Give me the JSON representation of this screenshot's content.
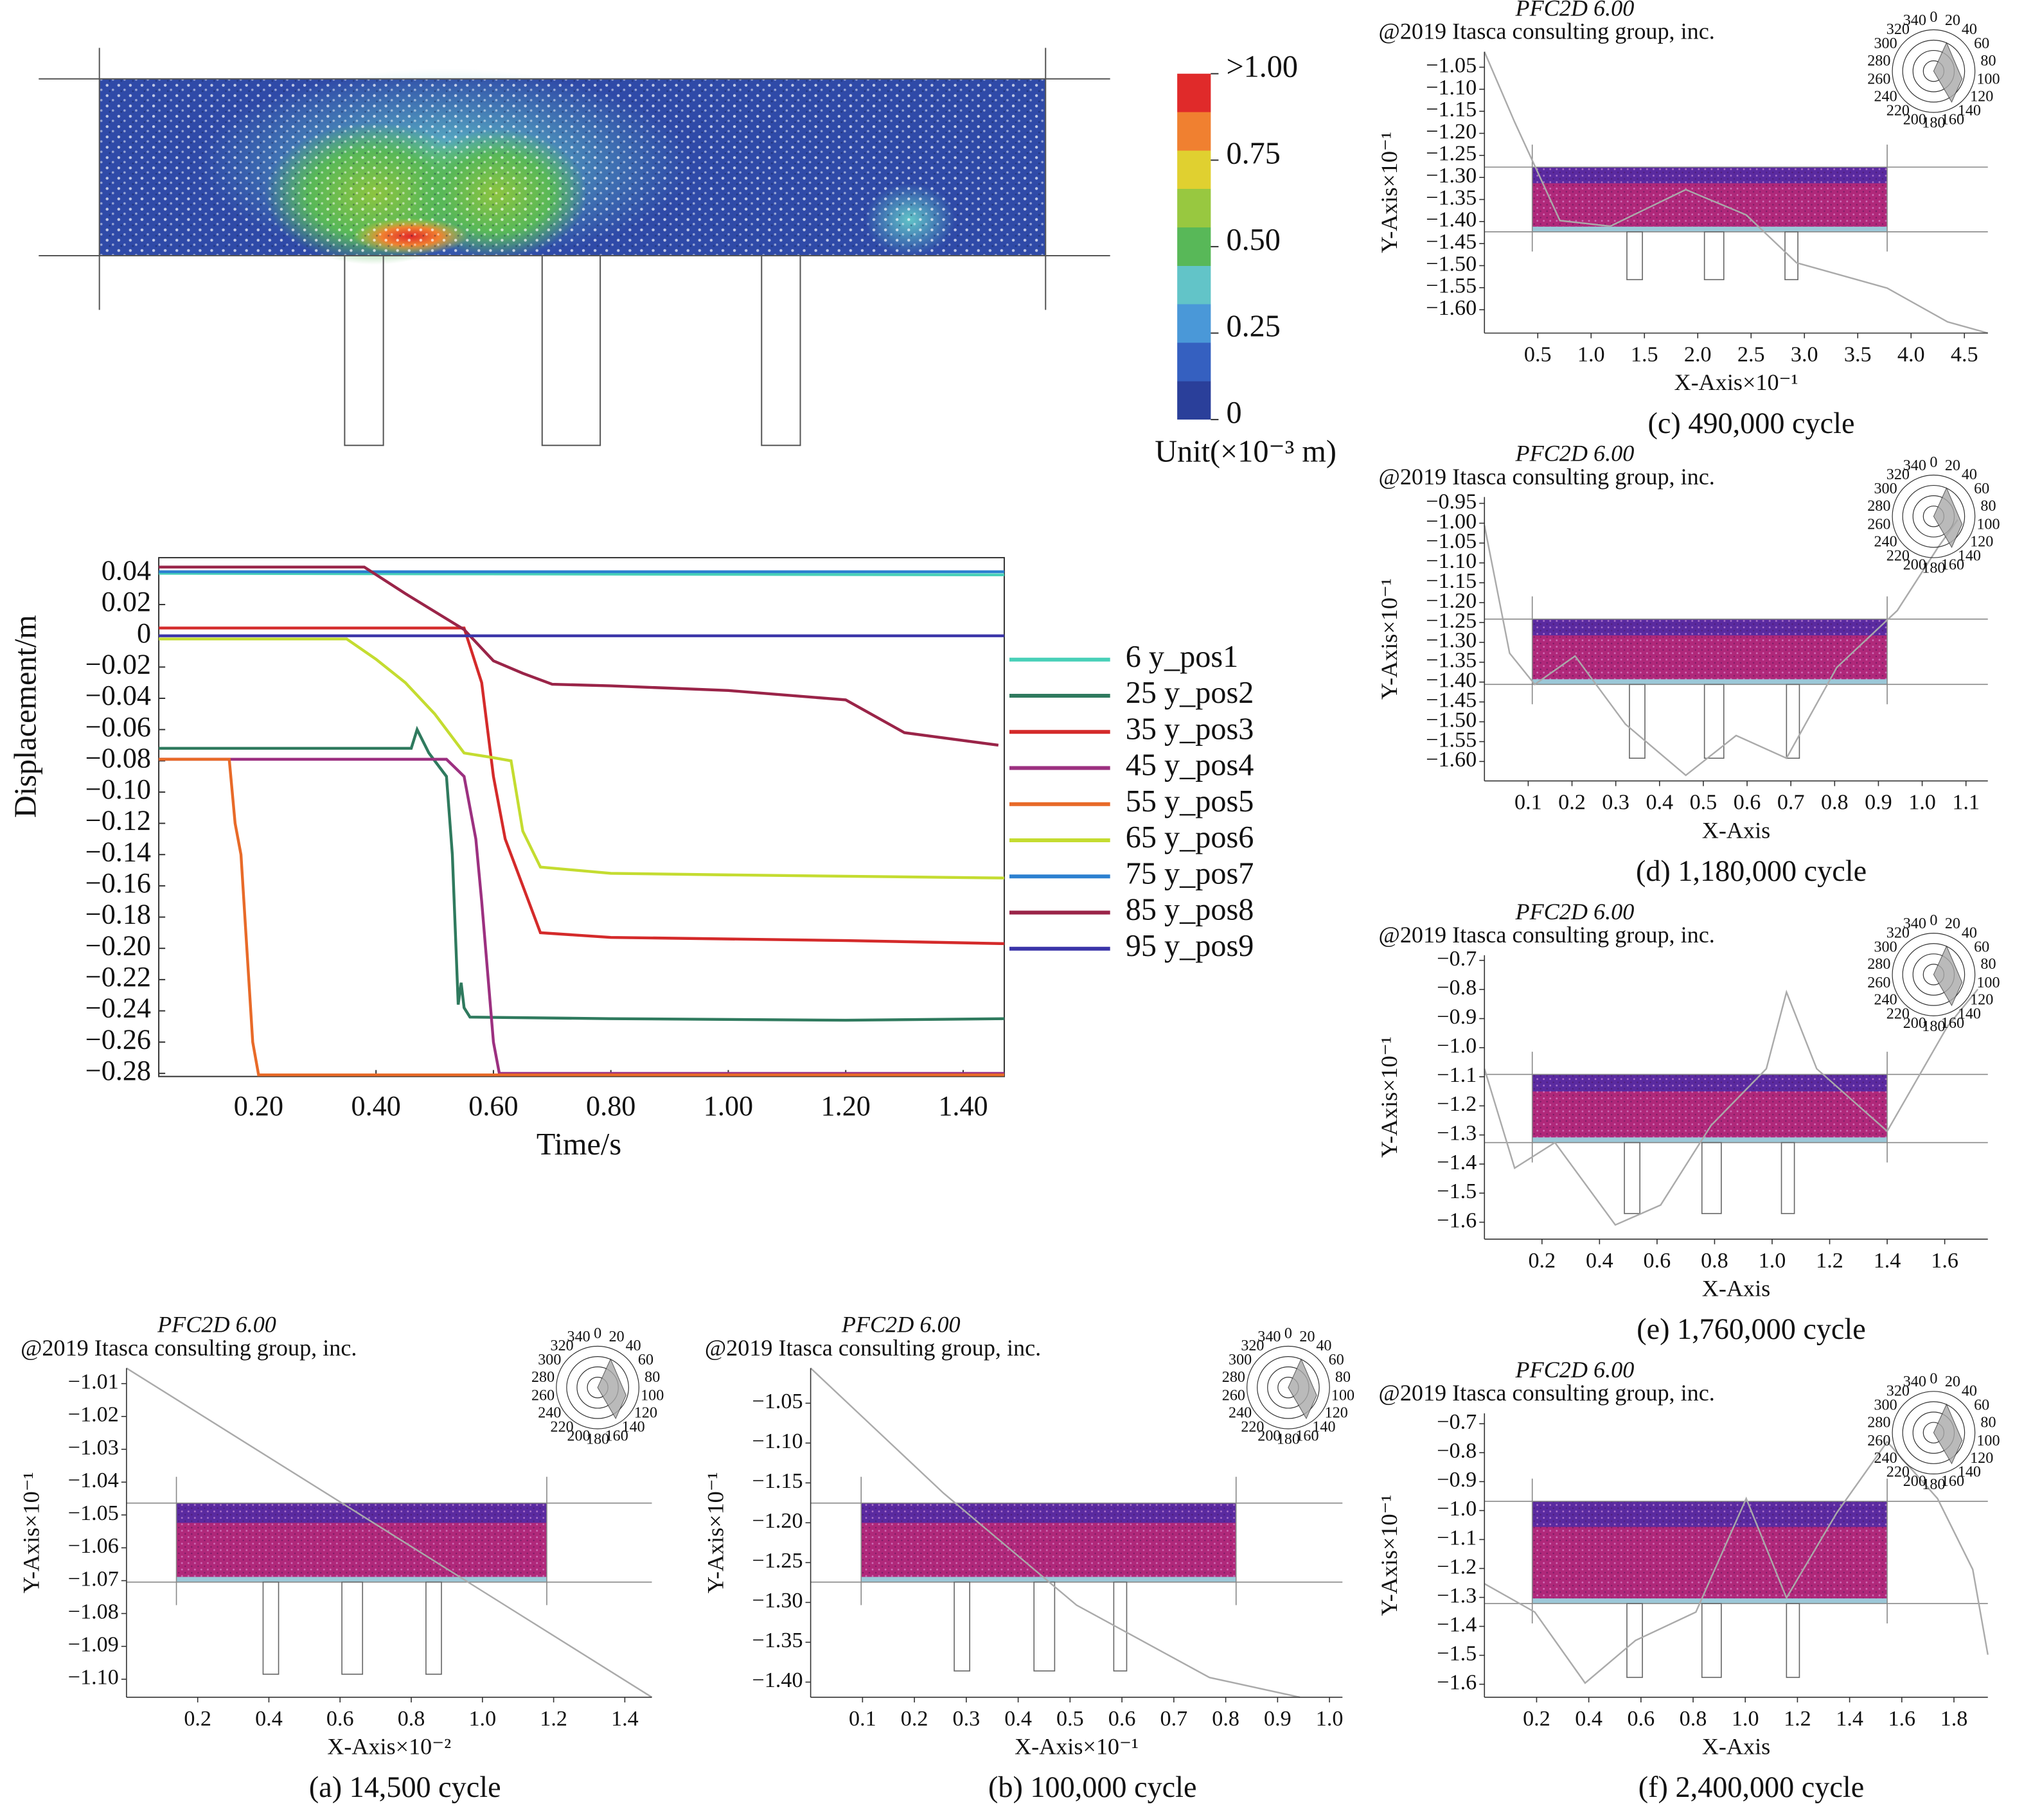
{
  "chart_data": [
    {
      "type": "heatmap",
      "colors": [
        "#2a3f9a",
        "#3560c0",
        "#4a98d8",
        "#62c4c8",
        "#58b858",
        "#98c840",
        "#e0d030",
        "#f08030",
        "#e02a2a"
      ],
      "colorbar_ticks": [
        {
          "value": 1.0,
          "label": ">1.00"
        },
        0.75,
        {
          "value": 0.5,
          "label": "0.50"
        },
        0.25,
        0
      ],
      "colorbar_title": "Unit(×10⁻³ m)"
    },
    {
      "type": "line",
      "x_label": "Time/s",
      "y_label": "Displacement/m",
      "xlim": [
        0.03,
        1.47
      ],
      "ylim": [
        -0.282,
        0.05
      ],
      "xticks": [
        {
          "value": 0.2,
          "label": "0.20"
        },
        {
          "value": 0.4,
          "label": "0.40"
        },
        {
          "value": 0.6,
          "label": "0.60"
        },
        {
          "value": 0.8,
          "label": "0.80"
        },
        {
          "value": 1.0,
          "label": "1.00"
        },
        {
          "value": 1.2,
          "label": "1.20"
        },
        {
          "value": 1.4,
          "label": "1.40"
        }
      ],
      "yticks": [
        0.04,
        0.02,
        0,
        {
          "value": -0.02,
          "label": "−0.02"
        },
        {
          "value": -0.04,
          "label": "−0.04"
        },
        {
          "value": -0.06,
          "label": "−0.06"
        },
        {
          "value": -0.08,
          "label": "−0.08"
        },
        {
          "value": -0.1,
          "label": "−0.10"
        },
        {
          "value": -0.12,
          "label": "−0.12"
        },
        {
          "value": -0.14,
          "label": "−0.14"
        },
        {
          "value": -0.16,
          "label": "−0.16"
        },
        {
          "value": -0.18,
          "label": "−0.18"
        },
        {
          "value": -0.2,
          "label": "−0.20"
        },
        {
          "value": -0.22,
          "label": "−0.22"
        },
        {
          "value": -0.24,
          "label": "−0.24"
        },
        {
          "value": -0.26,
          "label": "−0.26"
        },
        {
          "value": -0.28,
          "label": "−0.28"
        }
      ],
      "series": [
        {
          "name": "6 y_pos1",
          "color": "#48d0b8",
          "x": [
            0.03,
            1.47
          ],
          "values": [
            0.04,
            0.039
          ]
        },
        {
          "name": "25 y_pos2",
          "color": "#2f7a5e",
          "x": [
            0.03,
            0.46,
            0.47,
            0.49,
            0.52,
            0.53,
            0.54,
            0.545,
            0.55,
            0.56,
            0.8,
            1.2,
            1.47
          ],
          "values": [
            -0.072,
            -0.072,
            -0.06,
            -0.075,
            -0.09,
            -0.14,
            -0.236,
            -0.222,
            -0.238,
            -0.244,
            -0.245,
            -0.246,
            -0.245
          ]
        },
        {
          "name": "35 y_pos3",
          "color": "#d42a2a",
          "x": [
            0.03,
            0.55,
            0.58,
            0.6,
            0.62,
            0.65,
            0.68,
            0.8,
            1.2,
            1.47
          ],
          "values": [
            0.005,
            0.005,
            -0.03,
            -0.09,
            -0.13,
            -0.16,
            -0.19,
            -0.193,
            -0.195,
            -0.197
          ]
        },
        {
          "name": "45 y_pos4",
          "color": "#9c3080",
          "x": [
            0.03,
            0.52,
            0.55,
            0.57,
            0.58,
            0.6,
            0.61,
            0.8,
            1.47
          ],
          "values": [
            -0.079,
            -0.079,
            -0.09,
            -0.13,
            -0.17,
            -0.26,
            -0.28,
            -0.28,
            -0.28
          ]
        },
        {
          "name": "55 y_pos5",
          "color": "#e86a28",
          "x": [
            0.03,
            0.15,
            0.16,
            0.17,
            0.18,
            0.19,
            0.2,
            0.8,
            1.47
          ],
          "values": [
            -0.079,
            -0.079,
            -0.12,
            -0.14,
            -0.2,
            -0.26,
            -0.281,
            -0.281,
            -0.281
          ]
        },
        {
          "name": "65 y_pos6",
          "color": "#c4dc30",
          "x": [
            0.03,
            0.35,
            0.4,
            0.45,
            0.5,
            0.55,
            0.6,
            0.63,
            0.65,
            0.68,
            0.8,
            1.0,
            1.47
          ],
          "values": [
            -0.002,
            -0.002,
            -0.015,
            -0.03,
            -0.05,
            -0.075,
            -0.078,
            -0.08,
            -0.125,
            -0.148,
            -0.152,
            -0.153,
            -0.155
          ]
        },
        {
          "name": "75 y_pos7",
          "color": "#2c80d0",
          "x": [
            0.03,
            1.47
          ],
          "values": [
            0.041,
            0.041
          ]
        },
        {
          "name": "85 y_pos8",
          "color": "#9a2448",
          "x": [
            0.03,
            0.38,
            0.45,
            0.55,
            0.6,
            0.65,
            0.7,
            0.8,
            1.0,
            1.2,
            1.3,
            1.46
          ],
          "values": [
            0.044,
            0.044,
            0.027,
            0.004,
            -0.016,
            -0.024,
            -0.031,
            -0.032,
            -0.035,
            -0.041,
            -0.062,
            -0.07
          ]
        },
        {
          "name": "95 y_pos9",
          "color": "#3a34a8",
          "x": [
            0.03,
            1.47
          ],
          "values": [
            0.0,
            0.0
          ]
        }
      ]
    },
    {
      "type": "specimen",
      "header": "PFC2D 6.00",
      "watermark": "@2019 Itasca consulting group, inc.",
      "y_label": "Y-Axis×10⁻¹",
      "x_label": "X-Axis×10⁻²",
      "caption": "(a) 14,500 cycle",
      "xlim": [
        0,
        1.476
      ],
      "ylim": [
        -1.1055,
        -1.0053
      ],
      "xticks": [
        0.2,
        0.4,
        0.6,
        0.8,
        {
          "value": 1.0,
          "label": "1.0"
        },
        1.2,
        1.4
      ],
      "yticks": [
        {
          "value": -1.01,
          "label": "−1.01"
        },
        {
          "value": -1.02,
          "label": "−1.02"
        },
        {
          "value": -1.03,
          "label": "−1.03"
        },
        {
          "value": -1.04,
          "label": "−1.04"
        },
        {
          "value": -1.05,
          "label": "−1.05"
        },
        {
          "value": -1.06,
          "label": "−1.06"
        },
        {
          "value": -1.07,
          "label": "−1.07"
        },
        {
          "value": -1.08,
          "label": "−1.08"
        },
        {
          "value": -1.09,
          "label": "−1.09"
        },
        {
          "value": -1.1,
          "label": "−1.10"
        }
      ],
      "rose_labels": [
        0,
        20,
        40,
        60,
        80,
        100,
        120,
        140,
        160,
        180,
        200,
        220,
        240,
        260,
        280,
        300,
        320,
        340
      ]
    },
    {
      "type": "specimen",
      "header": "PFC2D 6.00",
      "watermark": "@2019 Itasca consulting group, inc.",
      "y_label": "Y-Axis×10⁻¹",
      "x_label": "X-Axis×10⁻¹",
      "caption": "(b) 100,000 cycle",
      "xlim": [
        0,
        1.025
      ],
      "ylim": [
        -1.419,
        -1.006
      ],
      "xticks": [
        0.1,
        0.2,
        0.3,
        0.4,
        0.5,
        0.6,
        0.7,
        0.8,
        0.9,
        {
          "value": 1.0,
          "label": "1.0"
        }
      ],
      "yticks": [
        {
          "value": -1.05,
          "label": "−1.05"
        },
        {
          "value": -1.1,
          "label": "−1.10"
        },
        {
          "value": -1.15,
          "label": "−1.15"
        },
        {
          "value": -1.2,
          "label": "−1.20"
        },
        {
          "value": -1.25,
          "label": "−1.25"
        },
        {
          "value": -1.3,
          "label": "−1.30"
        },
        {
          "value": -1.35,
          "label": "−1.35"
        },
        {
          "value": -1.4,
          "label": "−1.40"
        }
      ],
      "rose_labels": [
        0,
        20,
        40,
        60,
        80,
        100,
        120,
        140,
        160,
        180,
        200,
        220,
        240,
        260,
        280,
        300,
        320,
        340
      ]
    },
    {
      "type": "specimen",
      "header": "PFC2D 6.00",
      "watermark": "@2019 Itasca consulting group, inc.",
      "y_label": "Y-Axis×10⁻¹",
      "x_label": "X-Axis×10⁻¹",
      "caption": "(c) 490,000 cycle",
      "xlim": [
        0,
        4.72
      ],
      "ylim": [
        -1.653,
        -1.015
      ],
      "xticks": [
        0.5,
        {
          "value": 1.0,
          "label": "1.0"
        },
        1.5,
        {
          "value": 2.0,
          "label": "2.0"
        },
        2.5,
        {
          "value": 3.0,
          "label": "3.0"
        },
        3.5,
        {
          "value": 4.0,
          "label": "4.0"
        },
        4.5
      ],
      "yticks": [
        {
          "value": -1.05,
          "label": "−1.05"
        },
        {
          "value": -1.1,
          "label": "−1.10"
        },
        {
          "value": -1.15,
          "label": "−1.15"
        },
        {
          "value": -1.2,
          "label": "−1.20"
        },
        {
          "value": -1.25,
          "label": "−1.25"
        },
        {
          "value": -1.3,
          "label": "−1.30"
        },
        {
          "value": -1.35,
          "label": "−1.35"
        },
        {
          "value": -1.4,
          "label": "−1.40"
        },
        {
          "value": -1.45,
          "label": "−1.45"
        },
        {
          "value": -1.5,
          "label": "−1.50"
        },
        {
          "value": -1.55,
          "label": "−1.55"
        },
        {
          "value": -1.6,
          "label": "−1.60"
        }
      ],
      "rose_labels": [
        0,
        20,
        40,
        60,
        80,
        100,
        120,
        140,
        160,
        180,
        200,
        220,
        240,
        260,
        280,
        300,
        320,
        340
      ]
    },
    {
      "type": "specimen",
      "header": "PFC2D 6.00",
      "watermark": "@2019 Itasca consulting group, inc.",
      "y_label": "Y-Axis×10⁻¹",
      "x_label": "X-Axis",
      "caption": "(d) 1,180,000 cycle",
      "xlim": [
        0,
        1.15
      ],
      "ylim": [
        -1.649,
        -0.934
      ],
      "xticks": [
        0.1,
        0.2,
        0.3,
        0.4,
        0.5,
        0.6,
        0.7,
        0.8,
        0.9,
        {
          "value": 1.0,
          "label": "1.0"
        },
        1.1
      ],
      "yticks": [
        {
          "value": -0.95,
          "label": "−0.95"
        },
        {
          "value": -1.0,
          "label": "−1.00"
        },
        {
          "value": -1.05,
          "label": "−1.05"
        },
        {
          "value": -1.1,
          "label": "−1.10"
        },
        {
          "value": -1.15,
          "label": "−1.15"
        },
        {
          "value": -1.2,
          "label": "−1.20"
        },
        {
          "value": -1.25,
          "label": "−1.25"
        },
        {
          "value": -1.3,
          "label": "−1.30"
        },
        {
          "value": -1.35,
          "label": "−1.35"
        },
        {
          "value": -1.4,
          "label": "−1.40"
        },
        {
          "value": -1.45,
          "label": "−1.45"
        },
        {
          "value": -1.5,
          "label": "−1.50"
        },
        {
          "value": -1.55,
          "label": "−1.55"
        },
        {
          "value": -1.6,
          "label": "−1.60"
        }
      ],
      "rose_labels": [
        0,
        20,
        40,
        60,
        80,
        100,
        120,
        140,
        160,
        180,
        200,
        220,
        240,
        260,
        280,
        300,
        320,
        340
      ]
    },
    {
      "type": "specimen",
      "header": "PFC2D 6.00",
      "watermark": "@2019 Itasca consulting group, inc.",
      "y_label": "Y-Axis×10⁻¹",
      "x_label": "X-Axis",
      "caption": "(e) 1,760,000 cycle",
      "xlim": [
        0,
        1.75
      ],
      "ylim": [
        -1.658,
        -0.682
      ],
      "xticks": [
        0.2,
        0.4,
        0.6,
        0.8,
        {
          "value": 1.0,
          "label": "1.0"
        },
        1.2,
        1.4,
        1.6
      ],
      "yticks": [
        {
          "value": -0.7,
          "label": "−0.7"
        },
        {
          "value": -0.8,
          "label": "−0.8"
        },
        {
          "value": -0.9,
          "label": "−0.9"
        },
        {
          "value": -1.0,
          "label": "−1.0"
        },
        {
          "value": -1.1,
          "label": "−1.1"
        },
        {
          "value": -1.2,
          "label": "−1.2"
        },
        {
          "value": -1.3,
          "label": "−1.3"
        },
        {
          "value": -1.4,
          "label": "−1.4"
        },
        {
          "value": -1.5,
          "label": "−1.5"
        },
        {
          "value": -1.6,
          "label": "−1.6"
        }
      ],
      "rose_labels": [
        0,
        20,
        40,
        60,
        80,
        100,
        120,
        140,
        160,
        180,
        200,
        220,
        240,
        260,
        280,
        300,
        320,
        340
      ]
    },
    {
      "type": "specimen",
      "header": "PFC2D 6.00",
      "watermark": "@2019 Itasca consulting group, inc.",
      "y_label": "Y-Axis×10⁻¹",
      "x_label": "X-Axis",
      "caption": "(f) 2,400,000 cycle",
      "xlim": [
        0,
        1.93
      ],
      "ylim": [
        -1.645,
        -0.664
      ],
      "xticks": [
        0.2,
        0.4,
        0.6,
        0.8,
        {
          "value": 1.0,
          "label": "1.0"
        },
        1.2,
        1.4,
        1.6,
        1.8
      ],
      "yticks": [
        {
          "value": -0.7,
          "label": "−0.7"
        },
        {
          "value": -0.8,
          "label": "−0.8"
        },
        {
          "value": -0.9,
          "label": "−0.9"
        },
        {
          "value": -1.0,
          "label": "−1.0"
        },
        {
          "value": -1.1,
          "label": "−1.1"
        },
        {
          "value": -1.2,
          "label": "−1.2"
        },
        {
          "value": -1.3,
          "label": "−1.3"
        },
        {
          "value": -1.4,
          "label": "−1.4"
        },
        {
          "value": -1.5,
          "label": "−1.5"
        },
        {
          "value": -1.6,
          "label": "−1.6"
        }
      ],
      "rose_labels": [
        0,
        20,
        40,
        60,
        80,
        100,
        120,
        140,
        160,
        180,
        200,
        220,
        240,
        260,
        280,
        300,
        320,
        340
      ]
    }
  ]
}
